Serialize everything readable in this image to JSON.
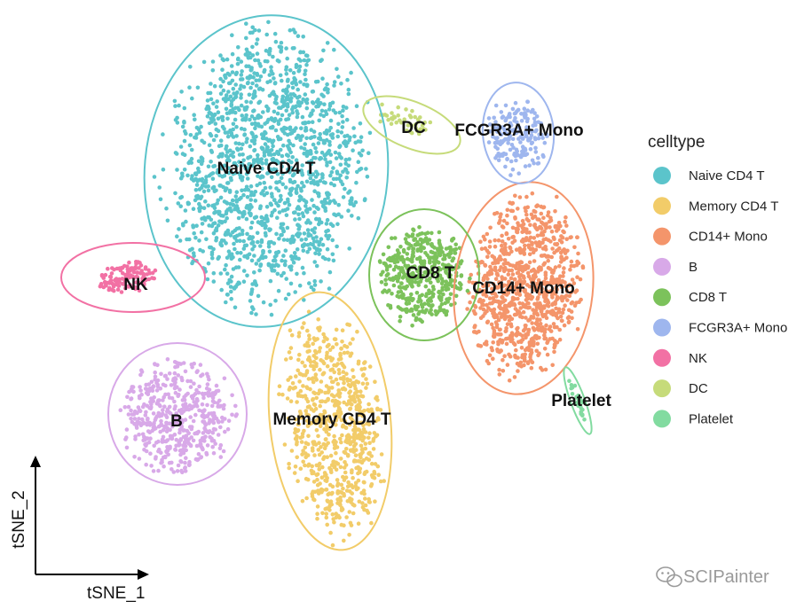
{
  "chart_data": {
    "type": "scatter",
    "xlabel": "tSNE_1",
    "ylabel": "tSNE_2",
    "grid": false,
    "axis_style": "arrows",
    "legend": {
      "title": "celltype",
      "position": "right"
    },
    "series": [
      {
        "name": "Naive CD4 T",
        "color": "#5BC4CB",
        "center": [
          300,
          190
        ],
        "rx": 128,
        "ry": 175,
        "angle": 5,
        "n": 1500,
        "shape": "ellipse"
      },
      {
        "name": "Memory CD4 T",
        "color": "#F2CC69",
        "center": [
          375,
          478
        ],
        "rx": 62,
        "ry": 143,
        "angle": -6,
        "n": 700,
        "shape": "ellipse"
      },
      {
        "name": "CD14+ Mono",
        "color": "#F4956B",
        "center": [
          592,
          322
        ],
        "rx": 70,
        "ry": 113,
        "angle": 6,
        "n": 900,
        "shape": "ellipse"
      },
      {
        "name": "B",
        "color": "#D8A9E8",
        "center": [
          200,
          468
        ],
        "rx": 72,
        "ry": 73,
        "angle": 0,
        "n": 500,
        "shape": "ellipse"
      },
      {
        "name": "CD8 T",
        "color": "#7CC25B",
        "center": [
          477,
          310
        ],
        "rx": 56,
        "ry": 65,
        "angle": 0,
        "n": 450,
        "shape": "ellipse"
      },
      {
        "name": "FCGR3A+ Mono",
        "color": "#9EB6EE",
        "center": [
          582,
          155
        ],
        "rx": 37,
        "ry": 47,
        "angle": 0,
        "n": 180,
        "shape": "ellipse"
      },
      {
        "name": "NK",
        "color": "#F271A4",
        "center": [
          143,
          313
        ],
        "rx": 38,
        "ry": 19,
        "angle": -12,
        "n": 120,
        "shape": "ellipse"
      },
      {
        "name": "DC",
        "color": "#C6DB7A",
        "center": [
          455,
          135
        ],
        "rx": 40,
        "ry": 16,
        "angle": 22,
        "n": 45,
        "shape": "ellipse"
      },
      {
        "name": "Platelet",
        "color": "#82DBA0",
        "center": [
          652,
          452
        ],
        "rx": 5,
        "ry": 34,
        "angle": -20,
        "n": 28,
        "shape": "ellipse"
      }
    ],
    "ellipses": [
      {
        "series": "Naive CD4 T",
        "center": [
          300,
          193
        ],
        "rx": 137,
        "ry": 176,
        "angle": 5
      },
      {
        "series": "Memory CD4 T",
        "center": [
          372,
          475
        ],
        "rx": 68,
        "ry": 146,
        "angle": -6
      },
      {
        "series": "CD14+ Mono",
        "center": [
          590,
          325
        ],
        "rx": 78,
        "ry": 120,
        "angle": 6
      },
      {
        "series": "B",
        "center": [
          200,
          467
        ],
        "rx": 78,
        "ry": 80,
        "angle": 0
      },
      {
        "series": "CD8 T",
        "center": [
          478,
          310
        ],
        "rx": 62,
        "ry": 74,
        "angle": 0
      },
      {
        "series": "FCGR3A+ Mono",
        "center": [
          584,
          150
        ],
        "rx": 40,
        "ry": 57,
        "angle": -5
      },
      {
        "series": "NK",
        "center": [
          150,
          313
        ],
        "rx": 81,
        "ry": 39,
        "angle": 0
      },
      {
        "series": "DC",
        "center": [
          464,
          141
        ],
        "rx": 58,
        "ry": 26,
        "angle": 22
      },
      {
        "series": "Platelet",
        "center": [
          651,
          452
        ],
        "rx": 8,
        "ry": 40,
        "angle": -20
      }
    ],
    "annotations": [
      {
        "text": "Naive CD4 T",
        "at": [
          300,
          191
        ]
      },
      {
        "text": "Memory CD4 T",
        "at": [
          374,
          474
        ]
      },
      {
        "text": "CD14+ Mono",
        "at": [
          590,
          326
        ]
      },
      {
        "text": "B",
        "at": [
          199,
          476
        ]
      },
      {
        "text": "CD8 T",
        "at": [
          485,
          309
        ]
      },
      {
        "text": "FCGR3A+ Mono",
        "at": [
          585,
          148
        ]
      },
      {
        "text": "NK",
        "at": [
          153,
          322
        ]
      },
      {
        "text": "DC",
        "at": [
          466,
          145
        ]
      },
      {
        "text": "Platelet",
        "at": [
          655,
          453
        ]
      }
    ]
  },
  "watermark": {
    "text": "SCIPainter",
    "icon": "wechat-icon",
    "color": "#9a9a9a"
  }
}
